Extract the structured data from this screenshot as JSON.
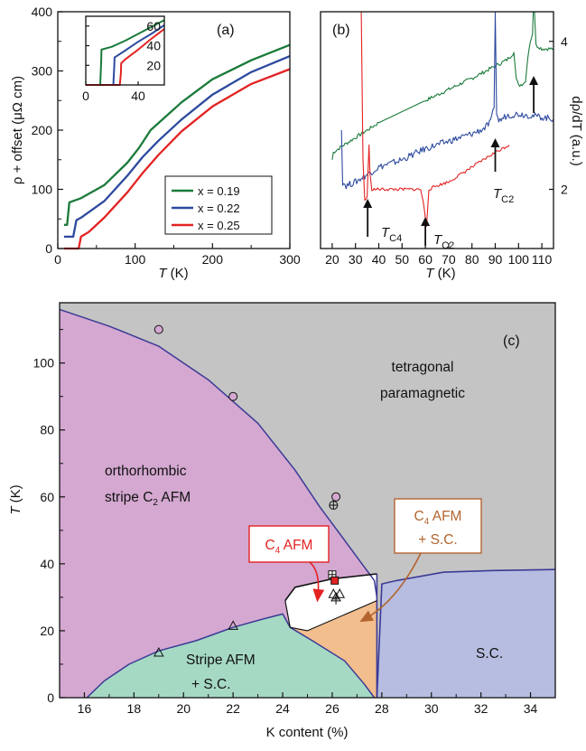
{
  "chart_data": [
    {
      "panel": "(a)",
      "type": "line",
      "xlabel": "T (K)",
      "ylabel": "ρ + offset (μΩ cm)",
      "xlim": [
        0,
        300
      ],
      "ylim": [
        0,
        400
      ],
      "xticks": [
        0,
        100,
        200,
        300
      ],
      "yticks": [
        0,
        100,
        200,
        300,
        400
      ],
      "legend_position": "lower-right",
      "series": [
        {
          "name": "x = 0.19",
          "color": "#1a7a3a",
          "x": [
            8,
            12,
            15,
            30,
            60,
            90,
            105,
            120,
            160,
            200,
            250,
            300
          ],
          "y": [
            40,
            40,
            78,
            85,
            107,
            145,
            170,
            200,
            247,
            286,
            318,
            344
          ]
        },
        {
          "name": "x = 0.22",
          "color": "#2d4a9e",
          "x": [
            8,
            20,
            24,
            30,
            60,
            90,
            110,
            130,
            160,
            200,
            250,
            300
          ],
          "y": [
            20,
            20,
            48,
            52,
            80,
            123,
            155,
            182,
            218,
            260,
            298,
            325
          ]
        },
        {
          "name": "x = 0.25",
          "color": "#e32222",
          "x": [
            8,
            27,
            30,
            40,
            60,
            90,
            110,
            130,
            160,
            200,
            250,
            300
          ],
          "y": [
            0,
            0,
            20,
            28,
            52,
            95,
            128,
            158,
            198,
            240,
            278,
            303
          ]
        }
      ],
      "inset": {
        "xlim": [
          0,
          60
        ],
        "ylim": [
          0,
          70
        ],
        "xticks": [
          0,
          40
        ],
        "yticks": [
          20,
          40,
          60
        ],
        "series": [
          {
            "name": "x = 0.19",
            "x": [
              0,
              11,
              11.8,
              12,
              20,
              30,
              40,
              50,
              60
            ],
            "y": [
              0,
              0,
              25,
              36,
              39,
              45,
              52,
              59,
              66
            ]
          },
          {
            "name": "x = 0.22",
            "x": [
              0,
              21,
              21.8,
              22,
              30,
              40,
              50,
              60
            ],
            "y": [
              0,
              0,
              20,
              28,
              35,
              44,
              52,
              61
            ]
          },
          {
            "name": "x = 0.25",
            "x": [
              0,
              26,
              26.8,
              27,
              30,
              40,
              50,
              60
            ],
            "y": [
              0,
              0,
              12,
              22,
              26,
              36,
              47,
              57
            ]
          }
        ]
      }
    },
    {
      "panel": "(b)",
      "type": "line",
      "xlabel": "T (K)",
      "ylabel": "dρ/dT (a.u.)",
      "xlim": [
        15,
        115
      ],
      "ylim": [
        1.2,
        4.4
      ],
      "xticks": [
        20,
        30,
        40,
        50,
        60,
        70,
        80,
        90,
        100,
        110
      ],
      "yticks_right": [
        2,
        4
      ],
      "series": [
        {
          "name": "x = 0.19",
          "color": "#1a7a3a",
          "x": [
            20,
            20.5,
            25,
            40,
            60,
            80,
            95,
            98,
            99,
            100,
            103,
            104,
            105,
            106,
            106.5,
            107.5,
            110,
            115
          ],
          "y": [
            2.4,
            2.5,
            2.6,
            2.9,
            3.2,
            3.5,
            3.75,
            3.85,
            3.5,
            3.4,
            3.45,
            3.8,
            4.0,
            4.1,
            4.6,
            3.95,
            3.9,
            3.9
          ]
        },
        {
          "name": "x = 0.22",
          "color": "#2d4a9e",
          "x": [
            24,
            24.5,
            26,
            30,
            40,
            50,
            60,
            70,
            80,
            85,
            88,
            89.5,
            90,
            90.6,
            91.5,
            95,
            100,
            105,
            115
          ],
          "y": [
            2.8,
            2.1,
            2.05,
            2.1,
            2.3,
            2.4,
            2.55,
            2.65,
            2.75,
            2.82,
            2.9,
            3.1,
            4.4,
            3.05,
            2.92,
            3.0,
            3.02,
            3.0,
            2.95
          ]
        },
        {
          "name": "x = 0.25",
          "color": "#e32222",
          "x": [
            32.5,
            33.2,
            34,
            35,
            35.8,
            36.2,
            37,
            40,
            50,
            58,
            59.5,
            60.5,
            61.5,
            65,
            70,
            80,
            90,
            96
          ],
          "y": [
            4.4,
            2.4,
            1.85,
            1.9,
            2.6,
            2.2,
            2.0,
            2.0,
            2.0,
            2.0,
            1.75,
            1.5,
            2.0,
            2.05,
            2.1,
            2.3,
            2.5,
            2.6
          ]
        }
      ],
      "annotations": [
        {
          "label": "T",
          "sub": "C4",
          "at_x": 36
        },
        {
          "label": "T",
          "sub": "C2",
          "at_x": 60
        },
        {
          "label": "T",
          "sub": "C2",
          "at_x": 90
        },
        {
          "label": "",
          "sub": "",
          "at_x": 106.5
        }
      ]
    },
    {
      "panel": "(c)",
      "type": "area",
      "xlabel": "K content (%)",
      "ylabel": "T (K)",
      "xlim": [
        15,
        35
      ],
      "ylim": [
        0,
        118
      ],
      "xticks": [
        16,
        18,
        20,
        22,
        24,
        26,
        28,
        30,
        32,
        34
      ],
      "yticks": [
        0,
        20,
        40,
        60,
        80,
        100
      ],
      "colors": {
        "para": "#c4c4c4",
        "stripe": "#d4a8d1",
        "c4": "#ffffff",
        "c4sc": "#f2be8e",
        "stripesc": "#a5d9c4",
        "sc": "#b7bde0",
        "boundary": "#3b3a96",
        "c4box": "#e32222",
        "c4scbox": "#b3642e"
      },
      "regions": {
        "para": "tetragonal paramagnetic",
        "stripe": "orthorhombic stripe C₂ AFM",
        "c4": "C₄ AFM",
        "c4sc": "C₄ AFM + S.C.",
        "stripesc": "Stripe AFM + S.C.",
        "sc": "S.C."
      },
      "stripe_boundary": {
        "x": [
          15,
          17,
          19,
          21,
          23,
          24.5,
          25.5,
          26.5,
          27.2,
          27.7,
          27.8
        ],
        "y": [
          116,
          111,
          105,
          95,
          82,
          68,
          57,
          47,
          40,
          35,
          30
        ]
      },
      "c4_top": {
        "x": [
          24.1,
          24.5,
          26,
          27.8
        ],
        "y": [
          29,
          33,
          35.5,
          37
        ]
      },
      "c4_bottom": {
        "x": [
          24.3,
          25,
          27.8
        ],
        "y": [
          21,
          20,
          29
        ]
      },
      "stripesc_boundary": {
        "x": [
          16.1,
          16.8,
          17.8,
          19,
          20.5,
          22,
          23.2,
          24,
          24.3,
          25.2,
          26.5,
          27.3,
          27.7
        ],
        "y": [
          0,
          5,
          10,
          14,
          17,
          21,
          23.5,
          25,
          21,
          17,
          11,
          4,
          0
        ]
      },
      "sc_boundary": {
        "x": [
          27.8,
          28,
          28.6,
          30.5,
          32.5,
          35
        ],
        "y": [
          0,
          34,
          35,
          37.5,
          38,
          38.3
        ]
      },
      "points": {
        "circle": [
          {
            "x": 19,
            "y": 110
          },
          {
            "x": 22,
            "y": 90
          },
          {
            "x": 26.15,
            "y": 60
          }
        ],
        "circle_plus": [
          {
            "x": 26.05,
            "y": 57.5
          }
        ],
        "square_plus": [
          {
            "x": 26.0,
            "y": 36.8
          }
        ],
        "filled_square": [
          {
            "x": 26.1,
            "y": 35
          }
        ],
        "triangle": [
          {
            "x": 19,
            "y": 13.5
          },
          {
            "x": 22,
            "y": 21.5
          },
          {
            "x": 26.05,
            "y": 31
          },
          {
            "x": 26.3,
            "y": 31
          }
        ],
        "triangle_plus": [
          {
            "x": 26.15,
            "y": 30
          }
        ]
      }
    }
  ],
  "figure_text": {
    "a_panel": "(a)",
    "a_ylabel": "ρ + offset (μΩ cm)",
    "b_panel": "(b)",
    "b_ylabel": "dρ/dT (a.u.)",
    "c_panel": "(c)",
    "c_xlabel": "K content (%)",
    "T_label": "T",
    "K_label": " (K)",
    "sub_c4": "C4",
    "sub_c2": "C2",
    "para_line1": "tetragonal",
    "para_line2": "paramagnetic",
    "stripe_line1": "orthorhombic",
    "stripe_line2a": "stripe C",
    "stripe_sub": "2",
    "stripe_line2b": " AFM",
    "c4_a": "C",
    "c4_sub": "4",
    "c4_b": " AFM",
    "c4sc_line2": "+ S.C.",
    "stripesc_line1": "Stripe AFM",
    "stripesc_line2": "+ S.C.",
    "sc": "S.C."
  }
}
